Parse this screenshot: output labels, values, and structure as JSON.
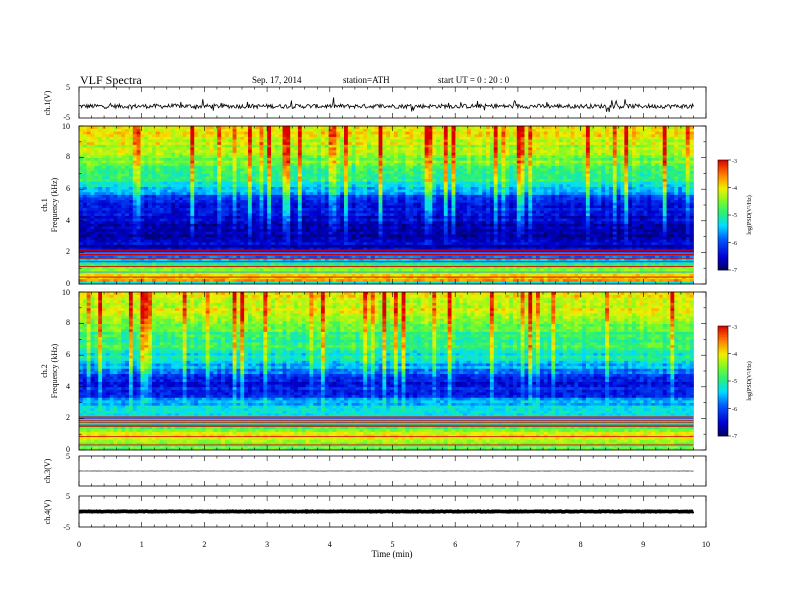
{
  "header": {
    "title": "VLF  Spectra",
    "date": "Sep. 17, 2014",
    "station": "station=ATH",
    "start": "start  UT =  0 : 20 : 0"
  },
  "chart_data": [
    {
      "type": "line",
      "ylabel": "ch.1(V)",
      "ylim": [
        -5,
        5
      ],
      "yticklabels": [
        "5",
        "-5"
      ],
      "xlim": [
        0,
        10
      ],
      "trace": {
        "baseline": -1.2,
        "noise_amp": 0.7,
        "spike_amp": 2.0,
        "end_min": 9.8,
        "color": "#000000"
      }
    },
    {
      "type": "heatmap",
      "ylabel": "ch.1",
      "ylabel2": "Frequency  (kHz)",
      "ylim": [
        0,
        10
      ],
      "yticklabels": [
        "0",
        "2",
        "4",
        "6",
        "8",
        "10"
      ],
      "xlim": [
        0,
        10
      ],
      "data_end_min": 9.8,
      "colorbar": {
        "label": "log(PSD(V²/Hz)",
        "range": [
          -7,
          -3
        ],
        "ticks": [
          "-3",
          "-4",
          "-5",
          "-6",
          "-7"
        ]
      },
      "profile_kHz": [
        0,
        0.2,
        0.5,
        1.0,
        1.5,
        2.0,
        2.5,
        3.0,
        3.5,
        4.0,
        4.5,
        5.0,
        5.5,
        6.0,
        6.5,
        7.0,
        7.5,
        8.0,
        8.5,
        9.0,
        9.5,
        10.0
      ],
      "profile_logpsd": [
        -6.2,
        -3.6,
        -4.0,
        -4.6,
        -5.6,
        -6.4,
        -6.6,
        -6.7,
        -6.7,
        -6.6,
        -6.5,
        -6.3,
        -6.0,
        -5.4,
        -5.1,
        -4.9,
        -4.7,
        -4.5,
        -4.3,
        -4.2,
        -4.1,
        -4.0
      ]
    },
    {
      "type": "heatmap",
      "ylabel": "ch.2",
      "ylabel2": "Frequency  (kHz)",
      "ylim": [
        0,
        10
      ],
      "yticklabels": [
        "0",
        "2",
        "4",
        "6",
        "8",
        "10"
      ],
      "xlim": [
        0,
        10
      ],
      "data_end_min": 9.8,
      "colorbar": {
        "label": "log(PSD(V²/Hz)",
        "range": [
          -7,
          -3
        ],
        "ticks": [
          "-3",
          "-4",
          "-5",
          "-6",
          "-7"
        ]
      },
      "profile_kHz": [
        0,
        0.2,
        0.5,
        1.0,
        1.5,
        2.0,
        2.5,
        3.0,
        3.5,
        4.0,
        4.5,
        5.0,
        5.5,
        6.0,
        6.5,
        7.0,
        7.5,
        8.0,
        8.5,
        9.0,
        9.5,
        10.0
      ],
      "profile_logpsd": [
        -5.3,
        -4.2,
        -4.6,
        -4.0,
        -5.0,
        -5.2,
        -5.3,
        -5.6,
        -6.2,
        -6.4,
        -6.2,
        -5.9,
        -5.4,
        -5.2,
        -5.0,
        -4.9,
        -4.7,
        -4.5,
        -4.3,
        -4.2,
        -4.1,
        -4.0
      ]
    },
    {
      "type": "line",
      "ylabel": "ch.3(V)",
      "ylim": [
        -5,
        5
      ],
      "yticklabels": [
        "5",
        "-5"
      ],
      "xlim": [
        0,
        10
      ],
      "trace": {
        "baseline": 0.0,
        "noise_amp": 0.05,
        "spike_amp": 0.0,
        "end_min": 9.8,
        "color": "#000000"
      }
    },
    {
      "type": "line",
      "ylabel": "ch.4(V)",
      "ylim": [
        -5,
        5
      ],
      "yticklabels": [
        "5",
        "-5"
      ],
      "xlim": [
        0,
        10
      ],
      "trace": {
        "baseline": 0.0,
        "noise_amp": 0.1,
        "spike_amp": 0.0,
        "end_min": 9.8,
        "color": "#000000",
        "thick": true
      }
    }
  ],
  "xaxis": {
    "label": "Time  (min)",
    "ticks": [
      "0",
      "1",
      "2",
      "3",
      "4",
      "5",
      "6",
      "7",
      "8",
      "9",
      "10"
    ]
  }
}
